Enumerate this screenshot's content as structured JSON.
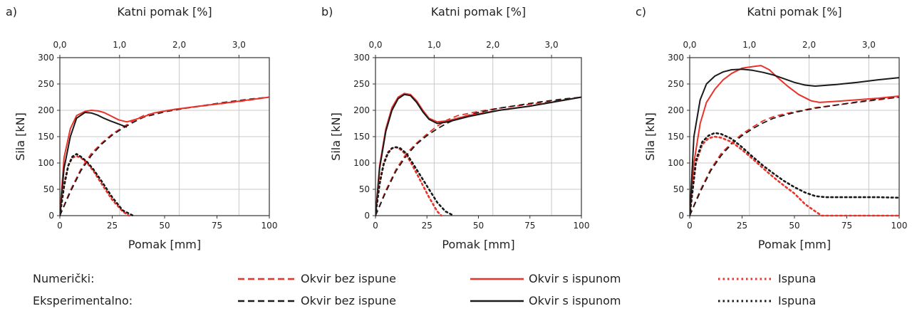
{
  "legend": {
    "row_numeric_label": "Numerički:",
    "row_experimental_label": "Eksperimentalno:",
    "entries": [
      "Okvir bez ispune",
      "Okvir s ispunom",
      "Ispuna"
    ],
    "numeric_color": "#e8322a",
    "experimental_color": "#1a1a1a",
    "styles": [
      "dashed",
      "solid",
      "dotted"
    ]
  },
  "chart_data": [
    {
      "type": "line",
      "panel_label": "a)",
      "xlabel": "Pomak [mm]",
      "ylabel": "Sila [kN]",
      "x2label": "Katni pomak [%]",
      "xlim": [
        0,
        100
      ],
      "ylim": [
        0,
        300
      ],
      "xticks": [
        "0",
        "25",
        "50",
        "75",
        "100"
      ],
      "yticks": [
        "0",
        "50",
        "100",
        "150",
        "200",
        "250",
        "300"
      ],
      "x2ticks": [
        {
          "pos": 0,
          "label": "0,0"
        },
        {
          "pos": 28.5,
          "label": "1,0"
        },
        {
          "pos": 57,
          "label": "2,0"
        },
        {
          "pos": 85.5,
          "label": "3,0"
        }
      ],
      "grid": true,
      "series": [
        {
          "source": "Numerički",
          "name": "Okvir bez ispune",
          "color": "#e8322a",
          "style": "dashed",
          "x": [
            0,
            5,
            10,
            15,
            20,
            25,
            30,
            35,
            40,
            50,
            60,
            70,
            80,
            90,
            100
          ],
          "y": [
            0,
            48,
            88,
            118,
            138,
            155,
            168,
            180,
            190,
            199,
            204,
            209,
            214,
            219,
            225
          ]
        },
        {
          "source": "Eksperimentalno",
          "name": "Okvir bez ispune",
          "color": "#1a1a1a",
          "style": "dashed",
          "x": [
            0,
            5,
            10,
            15,
            20,
            25,
            30,
            35,
            40,
            50,
            60,
            70,
            80,
            90,
            100
          ],
          "y": [
            0,
            45,
            85,
            114,
            136,
            153,
            166,
            177,
            187,
            197,
            204,
            210,
            216,
            221,
            225
          ]
        },
        {
          "source": "Numerički",
          "name": "Okvir s ispunom",
          "color": "#e8322a",
          "style": "solid",
          "x": [
            0,
            2,
            5,
            8,
            12,
            15,
            18,
            21,
            24,
            28,
            32,
            38,
            45,
            55,
            65,
            75,
            85,
            100
          ],
          "y": [
            0,
            110,
            165,
            190,
            198,
            200,
            199,
            196,
            190,
            182,
            178,
            185,
            195,
            202,
            207,
            212,
            217,
            225
          ]
        },
        {
          "source": "Eksperimentalno",
          "name": "Okvir s ispunom",
          "color": "#1a1a1a",
          "style": "solid",
          "x": [
            0,
            2,
            5,
            8,
            12,
            15,
            18,
            21,
            24,
            28,
            32
          ],
          "y": [
            0,
            90,
            150,
            185,
            196,
            195,
            191,
            185,
            180,
            174,
            168
          ]
        },
        {
          "source": "Numerički",
          "name": "Ispuna",
          "color": "#e8322a",
          "style": "dotted",
          "x": [
            0,
            2,
            4,
            6,
            8,
            10,
            13,
            16,
            20,
            25,
            30,
            33
          ],
          "y": [
            0,
            60,
            95,
            110,
            113,
            110,
            100,
            85,
            60,
            30,
            8,
            0
          ]
        },
        {
          "source": "Eksperimentalno",
          "name": "Ispuna",
          "color": "#1a1a1a",
          "style": "dotted",
          "x": [
            0,
            2,
            4,
            6,
            8,
            10,
            13,
            16,
            20,
            25,
            30,
            35
          ],
          "y": [
            0,
            55,
            95,
            112,
            117,
            112,
            102,
            88,
            65,
            35,
            10,
            0
          ]
        }
      ]
    },
    {
      "type": "line",
      "panel_label": "b)",
      "xlabel": "Pomak [mm]",
      "ylabel": "Sila [kN]",
      "x2label": "Katni pomak [%]",
      "xlim": [
        0,
        100
      ],
      "ylim": [
        0,
        300
      ],
      "xticks": [
        "0",
        "25",
        "50",
        "75",
        "100"
      ],
      "yticks": [
        "0",
        "50",
        "100",
        "150",
        "200",
        "250",
        "300"
      ],
      "x2ticks": [
        {
          "pos": 0,
          "label": "0,0"
        },
        {
          "pos": 28.5,
          "label": "1,0"
        },
        {
          "pos": 57,
          "label": "2,0"
        },
        {
          "pos": 85.5,
          "label": "3,0"
        }
      ],
      "grid": true,
      "series": [
        {
          "source": "Numerički",
          "name": "Okvir bez ispune",
          "color": "#e8322a",
          "style": "dashed",
          "x": [
            0,
            5,
            10,
            15,
            20,
            25,
            30,
            35,
            40,
            50,
            60,
            70,
            80,
            90,
            100
          ],
          "y": [
            0,
            48,
            88,
            118,
            138,
            155,
            170,
            182,
            190,
            198,
            204,
            209,
            214,
            219,
            225
          ]
        },
        {
          "source": "Eksperimentalno",
          "name": "Okvir bez ispune",
          "color": "#1a1a1a",
          "style": "dashed",
          "x": [
            0,
            5,
            10,
            15,
            20,
            25,
            30,
            35,
            40,
            50,
            60,
            70,
            80,
            90,
            100
          ],
          "y": [
            0,
            45,
            85,
            114,
            136,
            152,
            165,
            176,
            185,
            196,
            204,
            210,
            216,
            221,
            225
          ]
        },
        {
          "source": "Numerički",
          "name": "Okvir s ispunom",
          "color": "#e8322a",
          "style": "solid",
          "x": [
            0,
            2,
            5,
            8,
            11,
            14,
            17,
            20,
            23,
            26,
            30,
            35,
            45,
            60,
            75,
            100
          ],
          "y": [
            0,
            95,
            165,
            205,
            225,
            232,
            230,
            218,
            200,
            185,
            178,
            180,
            190,
            200,
            208,
            225
          ]
        },
        {
          "source": "Eksperimentalno",
          "name": "Okvir s ispunom",
          "color": "#1a1a1a",
          "style": "solid",
          "x": [
            0,
            2,
            5,
            8,
            11,
            14,
            17,
            20,
            23,
            26,
            30,
            35,
            45,
            60,
            75,
            100
          ],
          "y": [
            0,
            90,
            160,
            200,
            222,
            230,
            228,
            215,
            197,
            183,
            175,
            178,
            188,
            200,
            208,
            225
          ]
        },
        {
          "source": "Numerički",
          "name": "Ispuna",
          "color": "#e8322a",
          "style": "dotted",
          "x": [
            0,
            2,
            4,
            6,
            8,
            10,
            12,
            15,
            18,
            22,
            26,
            30,
            32
          ],
          "y": [
            0,
            65,
            100,
            120,
            128,
            130,
            126,
            115,
            95,
            65,
            35,
            8,
            0
          ]
        },
        {
          "source": "Eksperimentalno",
          "name": "Ispuna",
          "color": "#1a1a1a",
          "style": "dotted",
          "x": [
            0,
            2,
            4,
            6,
            8,
            10,
            12,
            15,
            18,
            22,
            26,
            30,
            34,
            38
          ],
          "y": [
            0,
            60,
            98,
            118,
            128,
            130,
            128,
            118,
            100,
            75,
            50,
            25,
            8,
            0
          ]
        }
      ]
    },
    {
      "type": "line",
      "panel_label": "c)",
      "xlabel": "Pomak [mm]",
      "ylabel": "Sila [kN]",
      "x2label": "Katni pomak [%]",
      "xlim": [
        0,
        100
      ],
      "ylim": [
        0,
        300
      ],
      "xticks": [
        "0",
        "25",
        "50",
        "75",
        "100"
      ],
      "yticks": [
        "0",
        "50",
        "100",
        "150",
        "200",
        "250",
        "300"
      ],
      "x2ticks": [
        {
          "pos": 0,
          "label": "0,0"
        },
        {
          "pos": 28.5,
          "label": "1,0"
        },
        {
          "pos": 57,
          "label": "2,0"
        },
        {
          "pos": 85.5,
          "label": "3,0"
        }
      ],
      "grid": true,
      "series": [
        {
          "source": "Numerički",
          "name": "Okvir bez ispune",
          "color": "#e8322a",
          "style": "dashed",
          "x": [
            0,
            5,
            10,
            15,
            20,
            25,
            30,
            35,
            40,
            45,
            50,
            60,
            70,
            80,
            90,
            100
          ],
          "y": [
            0,
            48,
            88,
            118,
            138,
            155,
            168,
            180,
            188,
            193,
            197,
            205,
            210,
            215,
            220,
            225
          ]
        },
        {
          "source": "Eksperimentalno",
          "name": "Okvir bez ispune",
          "color": "#1a1a1a",
          "style": "dashed",
          "x": [
            0,
            5,
            10,
            15,
            20,
            25,
            30,
            35,
            40,
            50,
            60,
            70,
            80,
            90,
            100
          ],
          "y": [
            0,
            45,
            85,
            114,
            136,
            152,
            165,
            176,
            185,
            196,
            204,
            210,
            216,
            221,
            225
          ]
        },
        {
          "source": "Numerički",
          "name": "Okvir s ispunom",
          "color": "#e8322a",
          "style": "solid",
          "x": [
            0,
            2,
            5,
            8,
            12,
            16,
            20,
            25,
            30,
            34,
            38,
            42,
            47,
            52,
            58,
            62,
            70,
            80,
            90,
            100
          ],
          "y": [
            0,
            100,
            175,
            215,
            240,
            258,
            270,
            280,
            283,
            285,
            277,
            262,
            245,
            230,
            218,
            215,
            217,
            220,
            223,
            227
          ]
        },
        {
          "source": "Eksperimentalno",
          "name": "Okvir s ispunom",
          "color": "#1a1a1a",
          "style": "solid",
          "x": [
            0,
            2,
            5,
            8,
            12,
            16,
            20,
            25,
            30,
            35,
            40,
            45,
            50,
            55,
            60,
            70,
            80,
            90,
            100
          ],
          "y": [
            0,
            150,
            220,
            250,
            265,
            273,
            277,
            278,
            276,
            272,
            267,
            260,
            253,
            248,
            246,
            249,
            253,
            258,
            262
          ]
        },
        {
          "source": "Numerički",
          "name": "Ispuna",
          "color": "#e8322a",
          "style": "dotted",
          "x": [
            0,
            3,
            6,
            9,
            12,
            15,
            20,
            25,
            30,
            35,
            40,
            45,
            50,
            55,
            60,
            63,
            70,
            80,
            90,
            100
          ],
          "y": [
            0,
            100,
            135,
            147,
            150,
            148,
            140,
            125,
            108,
            90,
            73,
            57,
            42,
            22,
            8,
            0,
            0,
            0,
            0,
            0
          ]
        },
        {
          "source": "Eksperimentalno",
          "name": "Ispuna",
          "color": "#1a1a1a",
          "style": "dotted",
          "x": [
            0,
            3,
            6,
            9,
            12,
            15,
            20,
            25,
            30,
            35,
            40,
            45,
            50,
            55,
            60,
            65,
            70,
            80,
            90,
            100
          ],
          "y": [
            0,
            105,
            140,
            152,
            157,
            155,
            146,
            130,
            112,
            95,
            80,
            66,
            54,
            44,
            37,
            35,
            35,
            35,
            35,
            34
          ]
        }
      ]
    }
  ]
}
